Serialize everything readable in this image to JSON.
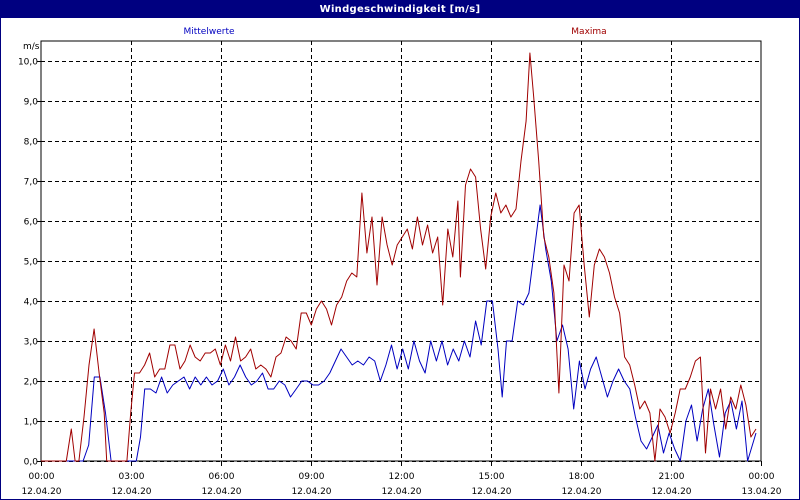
{
  "window": {
    "title": "Windgeschwindigkeit [m/s]"
  },
  "chart_data": {
    "type": "line",
    "title": "Windgeschwindigkeit [m/s]",
    "ylabel": "m/s",
    "ylim": [
      0,
      10.5
    ],
    "y_ticks": [
      "0,0",
      "1,0",
      "2,0",
      "3,0",
      "4,0",
      "5,0",
      "6,0",
      "7,0",
      "8,0",
      "9,0",
      "10,0"
    ],
    "xlim_hours": [
      0,
      24
    ],
    "x_ticks": [
      {
        "time": "00:00",
        "date": "12.04.20"
      },
      {
        "time": "03:00",
        "date": "12.04.20"
      },
      {
        "time": "06:00",
        "date": "12.04.20"
      },
      {
        "time": "09:00",
        "date": "12.04.20"
      },
      {
        "time": "12:00",
        "date": "12.04.20"
      },
      {
        "time": "15:00",
        "date": "12.04.20"
      },
      {
        "time": "18:00",
        "date": "12.04.20"
      },
      {
        "time": "21:00",
        "date": "12.04.20"
      },
      {
        "time": "00:00",
        "date": "13.04.20"
      }
    ],
    "grid": true,
    "legend_placement": "top",
    "series": [
      {
        "name": "Mittelwerte",
        "color": "#0000c0",
        "points": [
          [
            0,
            0
          ],
          [
            1.2,
            0
          ],
          [
            1.5,
            0
          ],
          [
            1.7,
            0.4
          ],
          [
            1.9,
            2.1
          ],
          [
            2.1,
            2.1
          ],
          [
            2.3,
            1.2
          ],
          [
            2.5,
            0
          ],
          [
            2.8,
            0
          ],
          [
            3.4,
            0
          ],
          [
            3.55,
            0.6
          ],
          [
            3.7,
            1.8
          ],
          [
            3.9,
            1.8
          ],
          [
            4.1,
            1.7
          ],
          [
            4.3,
            2.1
          ],
          [
            4.5,
            1.7
          ],
          [
            4.7,
            1.9
          ],
          [
            4.9,
            2.0
          ],
          [
            5.1,
            2.1
          ],
          [
            5.3,
            1.8
          ],
          [
            5.5,
            2.1
          ],
          [
            5.7,
            1.9
          ],
          [
            5.9,
            2.1
          ],
          [
            6.1,
            1.9
          ],
          [
            6.3,
            2.0
          ],
          [
            6.5,
            2.3
          ],
          [
            6.7,
            1.9
          ],
          [
            6.9,
            2.1
          ],
          [
            7.1,
            2.4
          ],
          [
            7.3,
            2.1
          ],
          [
            7.5,
            1.9
          ],
          [
            7.7,
            2.0
          ],
          [
            7.9,
            2.2
          ],
          [
            8.1,
            1.8
          ],
          [
            8.3,
            1.8
          ],
          [
            8.5,
            2.0
          ],
          [
            8.7,
            1.9
          ],
          [
            8.9,
            1.6
          ],
          [
            9.1,
            1.8
          ],
          [
            9.3,
            2.0
          ],
          [
            9.5,
            2.0
          ],
          [
            9.7,
            1.9
          ],
          [
            9.9,
            1.9
          ],
          [
            10.1,
            2.0
          ],
          [
            10.3,
            2.2
          ],
          [
            10.5,
            2.5
          ],
          [
            10.7,
            2.8
          ],
          [
            10.9,
            2.6
          ],
          [
            11.1,
            2.4
          ],
          [
            11.3,
            2.5
          ],
          [
            11.5,
            2.4
          ],
          [
            11.7,
            2.6
          ],
          [
            11.9,
            2.5
          ],
          [
            12.1,
            2.0
          ],
          [
            12.3,
            2.4
          ],
          [
            12.5,
            2.9
          ],
          [
            12.7,
            2.3
          ],
          [
            12.9,
            2.8
          ],
          [
            13.1,
            2.3
          ],
          [
            13.3,
            3.0
          ],
          [
            13.5,
            2.5
          ],
          [
            13.7,
            2.2
          ],
          [
            13.9,
            3.0
          ],
          [
            14.1,
            2.5
          ],
          [
            14.3,
            3.0
          ],
          [
            14.5,
            2.4
          ],
          [
            14.7,
            2.8
          ],
          [
            14.9,
            2.5
          ],
          [
            15.1,
            3.0
          ],
          [
            15.3,
            2.6
          ],
          [
            15.5,
            3.5
          ],
          [
            15.7,
            2.9
          ],
          [
            15.9,
            4.0
          ],
          [
            16.1,
            4.0
          ],
          [
            16.3,
            2.8
          ],
          [
            16.45,
            1.6
          ],
          [
            16.6,
            3.0
          ],
          [
            16.8,
            3.0
          ],
          [
            17.0,
            4.0
          ],
          [
            17.2,
            3.9
          ],
          [
            17.4,
            4.2
          ],
          [
            17.6,
            5.3
          ],
          [
            17.8,
            6.4
          ],
          [
            18.0,
            5.3
          ],
          [
            18.2,
            4.5
          ],
          [
            18.4,
            3.0
          ],
          [
            18.6,
            3.4
          ],
          [
            18.8,
            2.8
          ],
          [
            19.0,
            1.3
          ],
          [
            19.2,
            2.5
          ],
          [
            19.4,
            1.8
          ],
          [
            19.6,
            2.3
          ],
          [
            19.8,
            2.6
          ],
          [
            20.0,
            2.1
          ],
          [
            20.2,
            1.6
          ],
          [
            20.4,
            2.0
          ],
          [
            20.6,
            2.3
          ],
          [
            20.8,
            2.0
          ],
          [
            21.0,
            1.8
          ],
          [
            21.2,
            1.1
          ],
          [
            21.4,
            0.5
          ],
          [
            21.6,
            0.3
          ],
          [
            21.8,
            0.6
          ],
          [
            22.0,
            0.9
          ],
          [
            22.2,
            0.2
          ],
          [
            22.4,
            0.7
          ],
          [
            22.6,
            0.3
          ],
          [
            22.8,
            0.0
          ],
          [
            23.0,
            1.0
          ],
          [
            23.2,
            1.4
          ],
          [
            23.4,
            0.5
          ],
          [
            23.6,
            1.3
          ],
          [
            23.8,
            1.8
          ],
          [
            24.0,
            0.9
          ],
          [
            24.2,
            0.1
          ],
          [
            24.4,
            1.2
          ],
          [
            24.6,
            1.5
          ],
          [
            24.8,
            0.8
          ],
          [
            25.0,
            1.5
          ],
          [
            25.2,
            0.0
          ],
          [
            25.5,
            0.7
          ]
        ]
      },
      {
        "name": "Maxima",
        "color": "#a00000",
        "points": [
          [
            0,
            0
          ],
          [
            1.0,
            0
          ],
          [
            1.2,
            0.8
          ],
          [
            1.35,
            0
          ],
          [
            1.5,
            0
          ],
          [
            1.7,
            1.1
          ],
          [
            1.9,
            2.4
          ],
          [
            2.1,
            3.3
          ],
          [
            2.3,
            2.2
          ],
          [
            2.5,
            1.2
          ],
          [
            2.6,
            0
          ],
          [
            2.8,
            0
          ],
          [
            3.4,
            0
          ],
          [
            3.55,
            1.2
          ],
          [
            3.7,
            2.2
          ],
          [
            3.9,
            2.2
          ],
          [
            4.1,
            2.4
          ],
          [
            4.3,
            2.7
          ],
          [
            4.5,
            2.1
          ],
          [
            4.7,
            2.3
          ],
          [
            4.9,
            2.3
          ],
          [
            5.1,
            2.9
          ],
          [
            5.3,
            2.9
          ],
          [
            5.5,
            2.3
          ],
          [
            5.7,
            2.5
          ],
          [
            5.9,
            2.9
          ],
          [
            6.1,
            2.6
          ],
          [
            6.3,
            2.5
          ],
          [
            6.5,
            2.7
          ],
          [
            6.7,
            2.7
          ],
          [
            6.9,
            2.8
          ],
          [
            7.1,
            2.4
          ],
          [
            7.3,
            2.9
          ],
          [
            7.5,
            2.5
          ],
          [
            7.7,
            3.1
          ],
          [
            7.9,
            2.5
          ],
          [
            8.1,
            2.6
          ],
          [
            8.3,
            2.8
          ],
          [
            8.5,
            2.3
          ],
          [
            8.7,
            2.4
          ],
          [
            8.9,
            2.3
          ],
          [
            9.1,
            2.1
          ],
          [
            9.3,
            2.6
          ],
          [
            9.5,
            2.7
          ],
          [
            9.7,
            3.1
          ],
          [
            9.9,
            3.0
          ],
          [
            10.1,
            2.8
          ],
          [
            10.3,
            3.7
          ],
          [
            10.5,
            3.7
          ],
          [
            10.7,
            3.4
          ],
          [
            10.9,
            3.8
          ],
          [
            11.1,
            4.0
          ],
          [
            11.3,
            3.8
          ],
          [
            11.5,
            3.4
          ],
          [
            11.7,
            3.9
          ],
          [
            11.9,
            4.1
          ],
          [
            12.1,
            4.5
          ],
          [
            12.3,
            4.7
          ],
          [
            12.5,
            4.6
          ],
          [
            12.7,
            6.7
          ],
          [
            12.9,
            5.2
          ],
          [
            13.1,
            6.1
          ],
          [
            13.3,
            4.4
          ],
          [
            13.5,
            6.1
          ],
          [
            13.7,
            5.4
          ],
          [
            13.9,
            4.9
          ],
          [
            14.1,
            5.4
          ],
          [
            14.3,
            5.6
          ],
          [
            14.5,
            5.8
          ],
          [
            14.7,
            5.3
          ],
          [
            14.9,
            6.1
          ],
          [
            15.1,
            5.4
          ],
          [
            15.3,
            5.9
          ],
          [
            15.5,
            5.2
          ],
          [
            15.7,
            5.6
          ],
          [
            15.9,
            3.9
          ],
          [
            16.1,
            5.8
          ],
          [
            16.3,
            5.1
          ],
          [
            16.5,
            6.5
          ],
          [
            16.6,
            4.6
          ],
          [
            16.8,
            6.9
          ],
          [
            17.0,
            7.3
          ],
          [
            17.2,
            7.1
          ],
          [
            17.4,
            5.8
          ],
          [
            17.6,
            4.8
          ],
          [
            17.8,
            6.1
          ],
          [
            18.0,
            6.7
          ],
          [
            18.2,
            6.2
          ],
          [
            18.4,
            6.4
          ],
          [
            18.6,
            6.1
          ],
          [
            18.8,
            6.3
          ],
          [
            19.0,
            7.5
          ],
          [
            19.2,
            8.5
          ],
          [
            19.35,
            10.2
          ],
          [
            19.5,
            9.1
          ],
          [
            19.7,
            7.5
          ],
          [
            19.9,
            5.6
          ],
          [
            20.1,
            5.1
          ],
          [
            20.3,
            4.2
          ],
          [
            20.5,
            1.7
          ],
          [
            20.7,
            4.9
          ],
          [
            20.9,
            4.5
          ],
          [
            21.1,
            6.2
          ],
          [
            21.3,
            6.4
          ],
          [
            21.5,
            4.9
          ],
          [
            21.7,
            3.6
          ],
          [
            21.9,
            4.9
          ],
          [
            22.1,
            5.3
          ],
          [
            22.3,
            5.1
          ],
          [
            22.5,
            4.7
          ],
          [
            22.7,
            4.1
          ],
          [
            22.9,
            3.7
          ],
          [
            23.1,
            2.6
          ],
          [
            23.3,
            2.4
          ],
          [
            23.5,
            1.9
          ],
          [
            23.7,
            1.3
          ],
          [
            23.9,
            1.5
          ],
          [
            24.1,
            1.2
          ],
          [
            24.3,
            0.0
          ],
          [
            24.5,
            1.3
          ],
          [
            24.7,
            1.1
          ],
          [
            24.9,
            0.7
          ],
          [
            25.1,
            1.2
          ],
          [
            25.3,
            1.8
          ],
          [
            25.5,
            1.8
          ],
          [
            25.7,
            2.1
          ],
          [
            25.9,
            2.5
          ],
          [
            26.1,
            2.6
          ],
          [
            26.3,
            0.2
          ],
          [
            26.5,
            1.8
          ],
          [
            26.7,
            1.3
          ],
          [
            26.9,
            1.8
          ],
          [
            27.1,
            0.8
          ],
          [
            27.3,
            1.6
          ],
          [
            27.5,
            1.3
          ],
          [
            27.7,
            1.9
          ],
          [
            27.9,
            1.4
          ],
          [
            28.1,
            0.6
          ],
          [
            28.3,
            0.8
          ]
        ]
      }
    ]
  }
}
